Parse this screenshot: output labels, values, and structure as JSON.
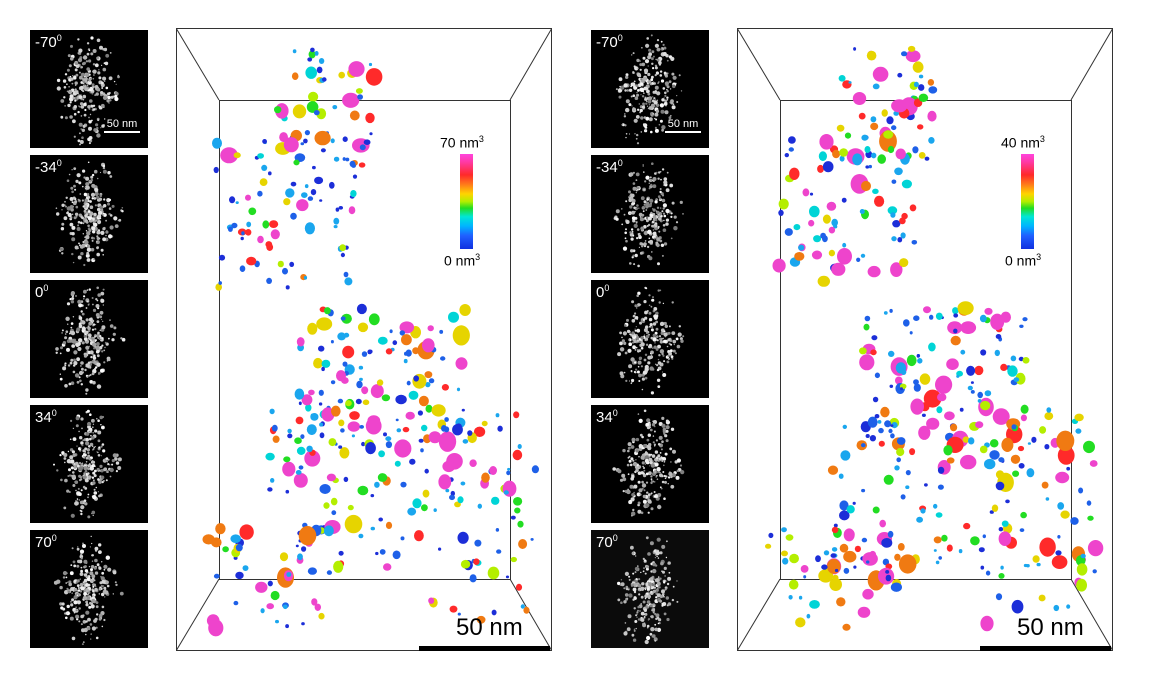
{
  "figure": {
    "left": {
      "tiles": [
        {
          "angle": "-70",
          "deg": "0",
          "scalebar": "50 nm"
        },
        {
          "angle": "-34",
          "deg": "0"
        },
        {
          "angle": "0",
          "deg": "0"
        },
        {
          "angle": "34",
          "deg": "0"
        },
        {
          "angle": "70",
          "deg": "0"
        }
      ],
      "colorbar": {
        "max_label": "70 nm",
        "max_sup": "3",
        "min_label": "0 nm",
        "min_sup": "3"
      },
      "scalebar": "50 nm"
    },
    "right": {
      "tiles": [
        {
          "angle": "-70",
          "deg": "0",
          "scalebar": "50 nm"
        },
        {
          "angle": "-34",
          "deg": "0"
        },
        {
          "angle": "0",
          "deg": "0"
        },
        {
          "angle": "34",
          "deg": "0"
        },
        {
          "angle": "70",
          "deg": "0"
        }
      ],
      "colorbar": {
        "max_label": "40 nm",
        "max_sup": "3",
        "min_label": "0 nm",
        "min_sup": "3"
      },
      "scalebar": "50 nm"
    },
    "particle_colors": [
      "#ee44cc",
      "#ff2a2a",
      "#f07a12",
      "#e6d400",
      "#b4ee00",
      "#22dd22",
      "#00d4d6",
      "#1aa6ee",
      "#1e60e8",
      "#1c2ed8"
    ]
  }
}
